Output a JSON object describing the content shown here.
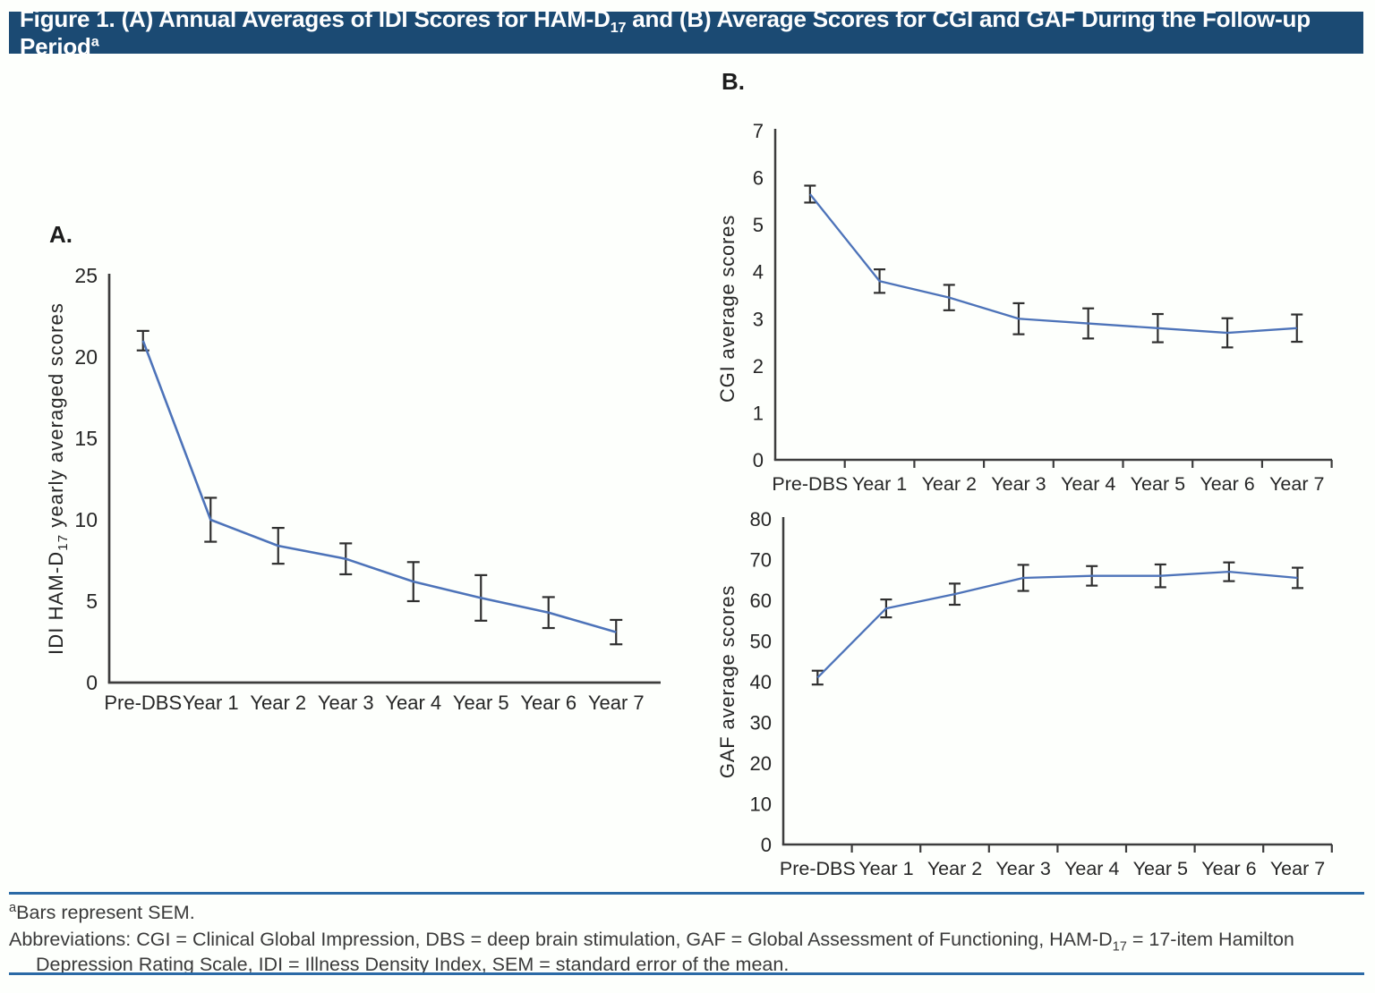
{
  "title": {
    "part1": "Figure 1. (A) Annual Averages of IDI Scores for HAM-D",
    "sub1": "17",
    "part2": " and (B) Average Scores for CGI and GAF During the Follow-up Period",
    "sup1": "a"
  },
  "panels": {
    "a_label": "A.",
    "b_label": "B."
  },
  "colors": {
    "header_bg": "#1b4a73",
    "series_line": "#4d73b9",
    "error_bar": "#2f2f2f",
    "axis": "#3d3d3d",
    "tick_text": "#262626",
    "divider": "#2b6aa6",
    "footnote_text": "#3a3a3a"
  },
  "footnote": {
    "sup": "a",
    "line1": "Bars represent SEM.",
    "line2_pre": "Abbreviations: CGI = Clinical Global Impression, DBS = deep brain stimulation, GAF = Global Assessment of Functioning, HAM-D",
    "line2_sub": "17",
    "line2_post": " = 17-item Hamilton",
    "line3": "Depression Rating Scale, IDI = Illness Density Index, SEM = standard error of the mean."
  },
  "chart_data": [
    {
      "id": "idi",
      "type": "line",
      "title": "",
      "categories": [
        "Pre-DBS",
        "Year 1",
        "Year 2",
        "Year 3",
        "Year 4",
        "Year 5",
        "Year 6",
        "Year 7"
      ],
      "series": [
        {
          "name": "IDI HAM-D17 yearly averaged scores",
          "values": [
            21.0,
            10.0,
            8.4,
            7.6,
            6.2,
            5.2,
            4.3,
            3.1
          ],
          "sem": [
            0.6,
            1.35,
            1.1,
            0.95,
            1.2,
            1.4,
            0.95,
            0.75
          ]
        }
      ],
      "ylabel_pre": "IDI HAM-D",
      "ylabel_sub": "17",
      "ylabel_post": " yearly averaged scores",
      "xlabel": "",
      "ylim": [
        0,
        25
      ],
      "ytick_step": 5,
      "x_boundary_ticks": false,
      "grid": false,
      "legend": "none",
      "error_bars": "SEM"
    },
    {
      "id": "cgi",
      "type": "line",
      "title": "",
      "categories": [
        "Pre-DBS",
        "Year 1",
        "Year 2",
        "Year 3",
        "Year 4",
        "Year 5",
        "Year 6",
        "Year 7"
      ],
      "series": [
        {
          "name": "CGI average scores",
          "values": [
            5.65,
            3.8,
            3.45,
            3.0,
            2.9,
            2.8,
            2.7,
            2.8
          ],
          "sem": [
            0.18,
            0.25,
            0.27,
            0.33,
            0.32,
            0.3,
            0.31,
            0.29
          ]
        }
      ],
      "ylabel_pre": "CGI average scores",
      "ylabel_sub": "",
      "ylabel_post": "",
      "xlabel": "",
      "ylim": [
        0,
        7
      ],
      "ytick_step": 1,
      "x_boundary_ticks": true,
      "grid": false,
      "legend": "none",
      "error_bars": "SEM"
    },
    {
      "id": "gaf",
      "type": "line",
      "title": "",
      "categories": [
        "Pre-DBS",
        "Year 1",
        "Year 2",
        "Year 3",
        "Year 4",
        "Year 5",
        "Year 6",
        "Year 7"
      ],
      "series": [
        {
          "name": "GAF average scores",
          "values": [
            41,
            58,
            61.5,
            65.5,
            66,
            66,
            67,
            65.5
          ],
          "sem": [
            1.7,
            2.2,
            2.6,
            3.2,
            2.4,
            2.8,
            2.3,
            2.5
          ]
        }
      ],
      "ylabel_pre": "GAF average scores",
      "ylabel_sub": "",
      "ylabel_post": "",
      "xlabel": "",
      "ylim": [
        0,
        80
      ],
      "ytick_step": 10,
      "x_boundary_ticks": true,
      "grid": false,
      "legend": "none",
      "error_bars": "SEM"
    }
  ]
}
